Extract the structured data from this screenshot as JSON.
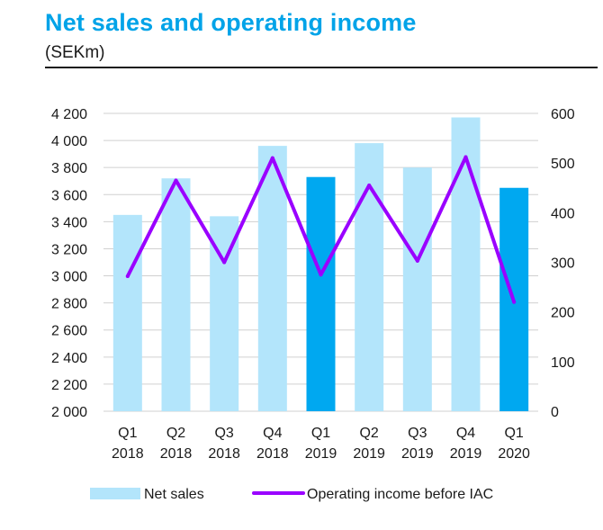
{
  "title": "Net sales and operating income",
  "subtitle": "(SEKm)",
  "colors": {
    "net_sales_light": "#b3e5fb",
    "net_sales_dark": "#00a8f0",
    "operating_income": "#9a00ff",
    "grid": "#d0d0d0",
    "title": "#00a3e8"
  },
  "chart_data": {
    "type": "bar",
    "categories": [
      [
        "Q1",
        "2018"
      ],
      [
        "Q2",
        "2018"
      ],
      [
        "Q3",
        "2018"
      ],
      [
        "Q4",
        "2018"
      ],
      [
        "Q1",
        "2019"
      ],
      [
        "Q2",
        "2019"
      ],
      [
        "Q3",
        "2019"
      ],
      [
        "Q4",
        "2019"
      ],
      [
        "Q1",
        "2020"
      ]
    ],
    "series": [
      {
        "name": "Net sales",
        "type": "bar",
        "axis": "left",
        "values": [
          3450,
          3720,
          3440,
          3960,
          3730,
          3980,
          3800,
          4170,
          3650
        ],
        "highlight": [
          false,
          false,
          false,
          false,
          true,
          false,
          false,
          false,
          true
        ]
      },
      {
        "name": "Operating income before IAC",
        "type": "line",
        "axis": "right",
        "values": [
          272,
          465,
          300,
          510,
          275,
          455,
          303,
          512,
          220
        ]
      }
    ],
    "y_left": {
      "min": 2000,
      "max": 4200,
      "step": 200,
      "ticks": [
        "2 000",
        "2 200",
        "2 400",
        "2 600",
        "2 800",
        "3 000",
        "3 200",
        "3 400",
        "3 600",
        "3 800",
        "4 000",
        "4 200"
      ]
    },
    "y_right": {
      "min": 0,
      "max": 600,
      "step": 100,
      "ticks": [
        "0",
        "100",
        "200",
        "300",
        "400",
        "500",
        "600"
      ]
    },
    "grid": true,
    "legend_position": "bottom"
  }
}
